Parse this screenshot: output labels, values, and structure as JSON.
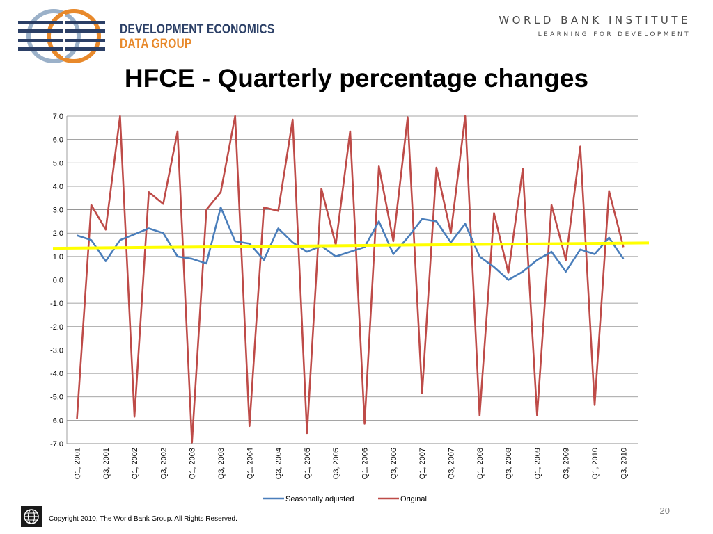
{
  "header": {
    "logo_line1": "DEVELOPMENT ECONOMICS",
    "logo_line2": "DATA GROUP",
    "wbi_title": "WORLD BANK INSTITUTE",
    "wbi_subtitle": "LEARNING FOR DEVELOPMENT"
  },
  "slide_title": "HFCE - Quarterly percentage changes",
  "chart_data": {
    "type": "line",
    "title": "",
    "xlabel": "",
    "ylabel": "",
    "ylim": [
      -7.0,
      7.0
    ],
    "ytick_step": 1.0,
    "grid": true,
    "legend": "bottom",
    "x": [
      "Q1, 2001",
      "Q2, 2001",
      "Q3, 2001",
      "Q4, 2001",
      "Q1, 2002",
      "Q2, 2002",
      "Q3, 2002",
      "Q4, 2002",
      "Q1, 2003",
      "Q2, 2003",
      "Q3, 2003",
      "Q4, 2003",
      "Q1, 2004",
      "Q2, 2004",
      "Q3, 2004",
      "Q4, 2004",
      "Q1, 2005",
      "Q2, 2005",
      "Q3, 2005",
      "Q4, 2005",
      "Q1, 2006",
      "Q2, 2006",
      "Q3, 2006",
      "Q4, 2006",
      "Q1, 2007",
      "Q2, 2007",
      "Q3, 2007",
      "Q4, 2007",
      "Q1, 2008",
      "Q2, 2008",
      "Q3, 2008",
      "Q4, 2008",
      "Q1, 2009",
      "Q2, 2009",
      "Q3, 2009",
      "Q4, 2009",
      "Q1, 2010",
      "Q2, 2010",
      "Q3, 2010"
    ],
    "xtick_labels_shown": [
      "Q1, 2001",
      "Q3, 2001",
      "Q1, 2002",
      "Q3, 2002",
      "Q1, 2003",
      "Q3, 2003",
      "Q1, 2004",
      "Q3, 2004",
      "Q1, 2005",
      "Q3, 2005",
      "Q1, 2006",
      "Q3, 2006",
      "Q1, 2007",
      "Q3, 2007",
      "Q1, 2008",
      "Q3, 2008",
      "Q1, 2009",
      "Q3, 2009",
      "Q1, 2010",
      "Q3, 2010"
    ],
    "series": [
      {
        "name": "Seasonally adjusted",
        "color": "#4a7ebb",
        "values": [
          1.9,
          1.7,
          0.8,
          1.7,
          1.95,
          2.2,
          2.0,
          1.0,
          0.9,
          0.7,
          3.1,
          1.65,
          1.55,
          0.85,
          2.2,
          1.6,
          1.2,
          1.45,
          1.0,
          1.2,
          1.4,
          2.5,
          1.1,
          1.8,
          2.6,
          2.5,
          1.6,
          2.4,
          1.0,
          0.55,
          0.0,
          0.35,
          0.85,
          1.2,
          0.35,
          1.3,
          1.1,
          1.8,
          0.9
        ]
      },
      {
        "name": "Original",
        "color": "#be4b48",
        "values": [
          -5.95,
          3.2,
          2.15,
          7.0,
          -5.85,
          3.75,
          3.25,
          6.35,
          -6.95,
          3.0,
          3.75,
          7.0,
          -6.25,
          3.1,
          2.95,
          6.85,
          -6.55,
          3.9,
          1.5,
          6.35,
          -6.15,
          4.85,
          1.65,
          6.95,
          -4.85,
          4.8,
          2.0,
          7.0,
          -5.8,
          2.85,
          0.3,
          4.75,
          -5.8,
          3.2,
          0.85,
          5.7,
          -5.35,
          3.8,
          1.4
        ]
      }
    ],
    "annotation": {
      "type": "trend-line",
      "color": "#ffff00",
      "from": [
        0,
        1.35
      ],
      "to": [
        39,
        1.58
      ]
    }
  },
  "footer": {
    "copyright": "Copyright 2010, The World Bank Group. All Rights Reserved.",
    "page_number": "20"
  }
}
